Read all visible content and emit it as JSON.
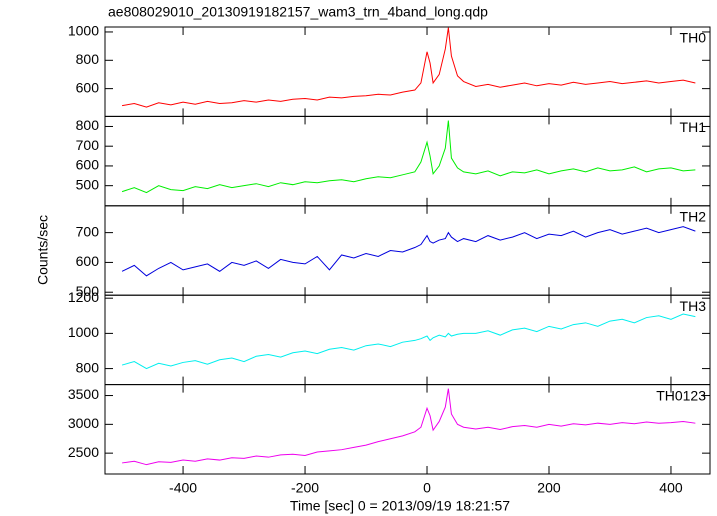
{
  "chart_data": [
    {
      "type": "line",
      "title": "ae808029010_20130919182157_wam3_trn_4band_long.qdp",
      "x": [
        -500,
        -480,
        -460,
        -440,
        -420,
        -400,
        -380,
        -360,
        -340,
        -320,
        -300,
        -280,
        -260,
        -240,
        -220,
        -200,
        -180,
        -160,
        -140,
        -120,
        -100,
        -80,
        -60,
        -40,
        -20,
        -10,
        0,
        5,
        10,
        20,
        30,
        35,
        40,
        50,
        60,
        80,
        100,
        120,
        140,
        160,
        180,
        200,
        220,
        240,
        260,
        280,
        300,
        320,
        340,
        360,
        380,
        400,
        420,
        440
      ],
      "series": [
        {
          "name": "TH0",
          "color": "#ff0000",
          "values": [
            480,
            495,
            470,
            500,
            485,
            505,
            490,
            510,
            495,
            500,
            515,
            505,
            520,
            510,
            525,
            530,
            520,
            540,
            535,
            545,
            550,
            560,
            555,
            575,
            590,
            640,
            860,
            780,
            640,
            700,
            880,
            1030,
            830,
            690,
            650,
            615,
            630,
            610,
            625,
            640,
            620,
            635,
            625,
            645,
            630,
            640,
            650,
            635,
            645,
            655,
            640,
            650,
            660,
            640
          ]
        }
      ],
      "xlim": [
        -528,
        464
      ],
      "ylim": [
        404,
        1035
      ],
      "yticks": [
        600,
        800,
        1000
      ]
    },
    {
      "type": "line",
      "x": [
        -500,
        -480,
        -460,
        -440,
        -420,
        -400,
        -380,
        -360,
        -340,
        -320,
        -300,
        -280,
        -260,
        -240,
        -220,
        -200,
        -180,
        -160,
        -140,
        -120,
        -100,
        -80,
        -60,
        -40,
        -20,
        -10,
        0,
        5,
        10,
        20,
        30,
        35,
        40,
        50,
        60,
        80,
        100,
        120,
        140,
        160,
        180,
        200,
        220,
        240,
        260,
        280,
        300,
        320,
        340,
        360,
        380,
        400,
        420,
        440
      ],
      "series": [
        {
          "name": "TH1",
          "color": "#00ee00",
          "values": [
            470,
            490,
            465,
            500,
            480,
            475,
            495,
            485,
            505,
            490,
            500,
            510,
            495,
            515,
            505,
            520,
            515,
            525,
            530,
            520,
            535,
            545,
            540,
            555,
            570,
            620,
            720,
            650,
            560,
            600,
            690,
            830,
            640,
            590,
            570,
            560,
            575,
            550,
            570,
            565,
            580,
            560,
            575,
            585,
            570,
            590,
            575,
            580,
            595,
            570,
            585,
            590,
            575,
            580
          ]
        }
      ],
      "xlim": [
        -528,
        464
      ],
      "ylim": [
        398,
        851
      ],
      "yticks": [
        500,
        600,
        700,
        800
      ]
    },
    {
      "type": "line",
      "ylabel": "Counts/sec",
      "x": [
        -500,
        -480,
        -460,
        -440,
        -420,
        -400,
        -380,
        -360,
        -340,
        -320,
        -300,
        -280,
        -260,
        -240,
        -220,
        -200,
        -180,
        -160,
        -140,
        -120,
        -100,
        -80,
        -60,
        -40,
        -20,
        -10,
        0,
        5,
        10,
        20,
        30,
        35,
        40,
        50,
        60,
        80,
        100,
        120,
        140,
        160,
        180,
        200,
        220,
        240,
        260,
        280,
        300,
        320,
        340,
        360,
        380,
        400,
        420,
        440
      ],
      "series": [
        {
          "name": "TH2",
          "color": "#0000dd",
          "values": [
            570,
            590,
            555,
            580,
            600,
            575,
            585,
            595,
            570,
            600,
            590,
            605,
            580,
            610,
            600,
            595,
            620,
            575,
            625,
            615,
            630,
            620,
            640,
            635,
            650,
            660,
            690,
            670,
            665,
            675,
            680,
            700,
            685,
            670,
            680,
            670,
            690,
            675,
            685,
            700,
            680,
            695,
            690,
            705,
            685,
            700,
            710,
            695,
            705,
            715,
            700,
            710,
            720,
            705
          ]
        }
      ],
      "xlim": [
        -528,
        464
      ],
      "ylim": [
        490,
        790
      ],
      "yticks": [
        500,
        600,
        700
      ]
    },
    {
      "type": "line",
      "x": [
        -500,
        -480,
        -460,
        -440,
        -420,
        -400,
        -380,
        -360,
        -340,
        -320,
        -300,
        -280,
        -260,
        -240,
        -220,
        -200,
        -180,
        -160,
        -140,
        -120,
        -100,
        -80,
        -60,
        -40,
        -20,
        -10,
        0,
        5,
        10,
        20,
        30,
        35,
        40,
        50,
        60,
        80,
        100,
        120,
        140,
        160,
        180,
        200,
        220,
        240,
        260,
        280,
        300,
        320,
        340,
        360,
        380,
        400,
        420,
        440
      ],
      "series": [
        {
          "name": "TH3",
          "color": "#00eeee",
          "values": [
            820,
            840,
            800,
            830,
            815,
            835,
            845,
            825,
            850,
            860,
            840,
            870,
            880,
            865,
            890,
            900,
            885,
            910,
            920,
            905,
            930,
            940,
            925,
            950,
            960,
            970,
            985,
            960,
            975,
            990,
            980,
            1000,
            985,
            995,
            1000,
            1000,
            1015,
            990,
            1020,
            1030,
            1010,
            1040,
            1025,
            1050,
            1060,
            1040,
            1070,
            1080,
            1060,
            1090,
            1100,
            1080,
            1110,
            1095
          ]
        }
      ],
      "xlim": [
        -528,
        464
      ],
      "ylim": [
        709,
        1217
      ],
      "yticks": [
        800,
        1000,
        1200
      ]
    },
    {
      "type": "line",
      "xlabel": "Time [sec] 0 = 2013/09/19 18:21:57",
      "x": [
        -500,
        -480,
        -460,
        -440,
        -420,
        -400,
        -380,
        -360,
        -340,
        -320,
        -300,
        -280,
        -260,
        -240,
        -220,
        -200,
        -180,
        -160,
        -140,
        -120,
        -100,
        -80,
        -60,
        -40,
        -20,
        -10,
        0,
        5,
        10,
        20,
        30,
        35,
        40,
        50,
        60,
        80,
        100,
        120,
        140,
        160,
        180,
        200,
        220,
        240,
        260,
        280,
        300,
        320,
        340,
        360,
        380,
        400,
        420,
        440
      ],
      "series": [
        {
          "name": "TH0123",
          "color": "#ee00ee",
          "values": [
            2330,
            2360,
            2300,
            2350,
            2340,
            2380,
            2360,
            2400,
            2380,
            2420,
            2410,
            2450,
            2430,
            2470,
            2480,
            2460,
            2520,
            2540,
            2560,
            2600,
            2640,
            2700,
            2750,
            2800,
            2870,
            2950,
            3280,
            3150,
            2900,
            3050,
            3300,
            3620,
            3180,
            3000,
            2950,
            2920,
            2950,
            2910,
            2960,
            2980,
            2950,
            3000,
            2970,
            3010,
            2990,
            3020,
            3000,
            3030,
            3010,
            3040,
            3020,
            3030,
            3050,
            3020
          ]
        }
      ],
      "xlim": [
        -528,
        464
      ],
      "ylim": [
        2138,
        3690
      ],
      "yticks": [
        2500,
        3000,
        3500
      ],
      "xticks": [
        -400,
        -200,
        0,
        200,
        400
      ]
    }
  ]
}
